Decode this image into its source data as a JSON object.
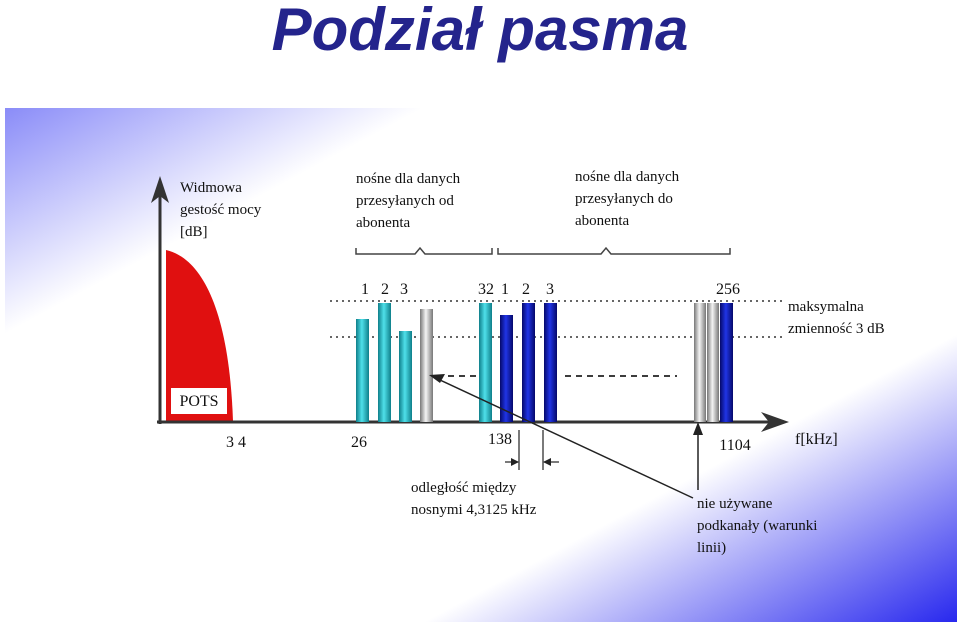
{
  "title": "Podział pasma",
  "colors": {
    "title": "#24248c",
    "pots": "#e01010",
    "upstream": "#2ab7c4",
    "downstream": "#0a16b8",
    "unused": "#e6e6e6",
    "axis": "#333333"
  },
  "diagram": {
    "y_axis_label": [
      "Widmowa",
      "gestość mocy",
      "[dB]"
    ],
    "upstream_label": [
      "nośne dla danych",
      "przesyłanych od",
      "abonenta"
    ],
    "downstream_label": [
      "nośne dla danych",
      "przesyłanych do",
      "abonenta"
    ],
    "pots_label": "POTS",
    "max_variation_label": [
      "maksymalna",
      "zmienność 3 dB"
    ],
    "spacing_label": [
      "odległość między",
      "nosnymi 4,3125 kHz"
    ],
    "unused_label": [
      "nie używane",
      "podkanały (warunki",
      "linii)"
    ],
    "x_axis_label": "f[kHz]",
    "x_ticks": [
      "3 4",
      "26",
      "138",
      "1104"
    ],
    "upstream_carrier_labels": [
      "1",
      "2",
      "3",
      "32"
    ],
    "downstream_carrier_labels": [
      "1",
      "2",
      "3",
      "256"
    ]
  }
}
